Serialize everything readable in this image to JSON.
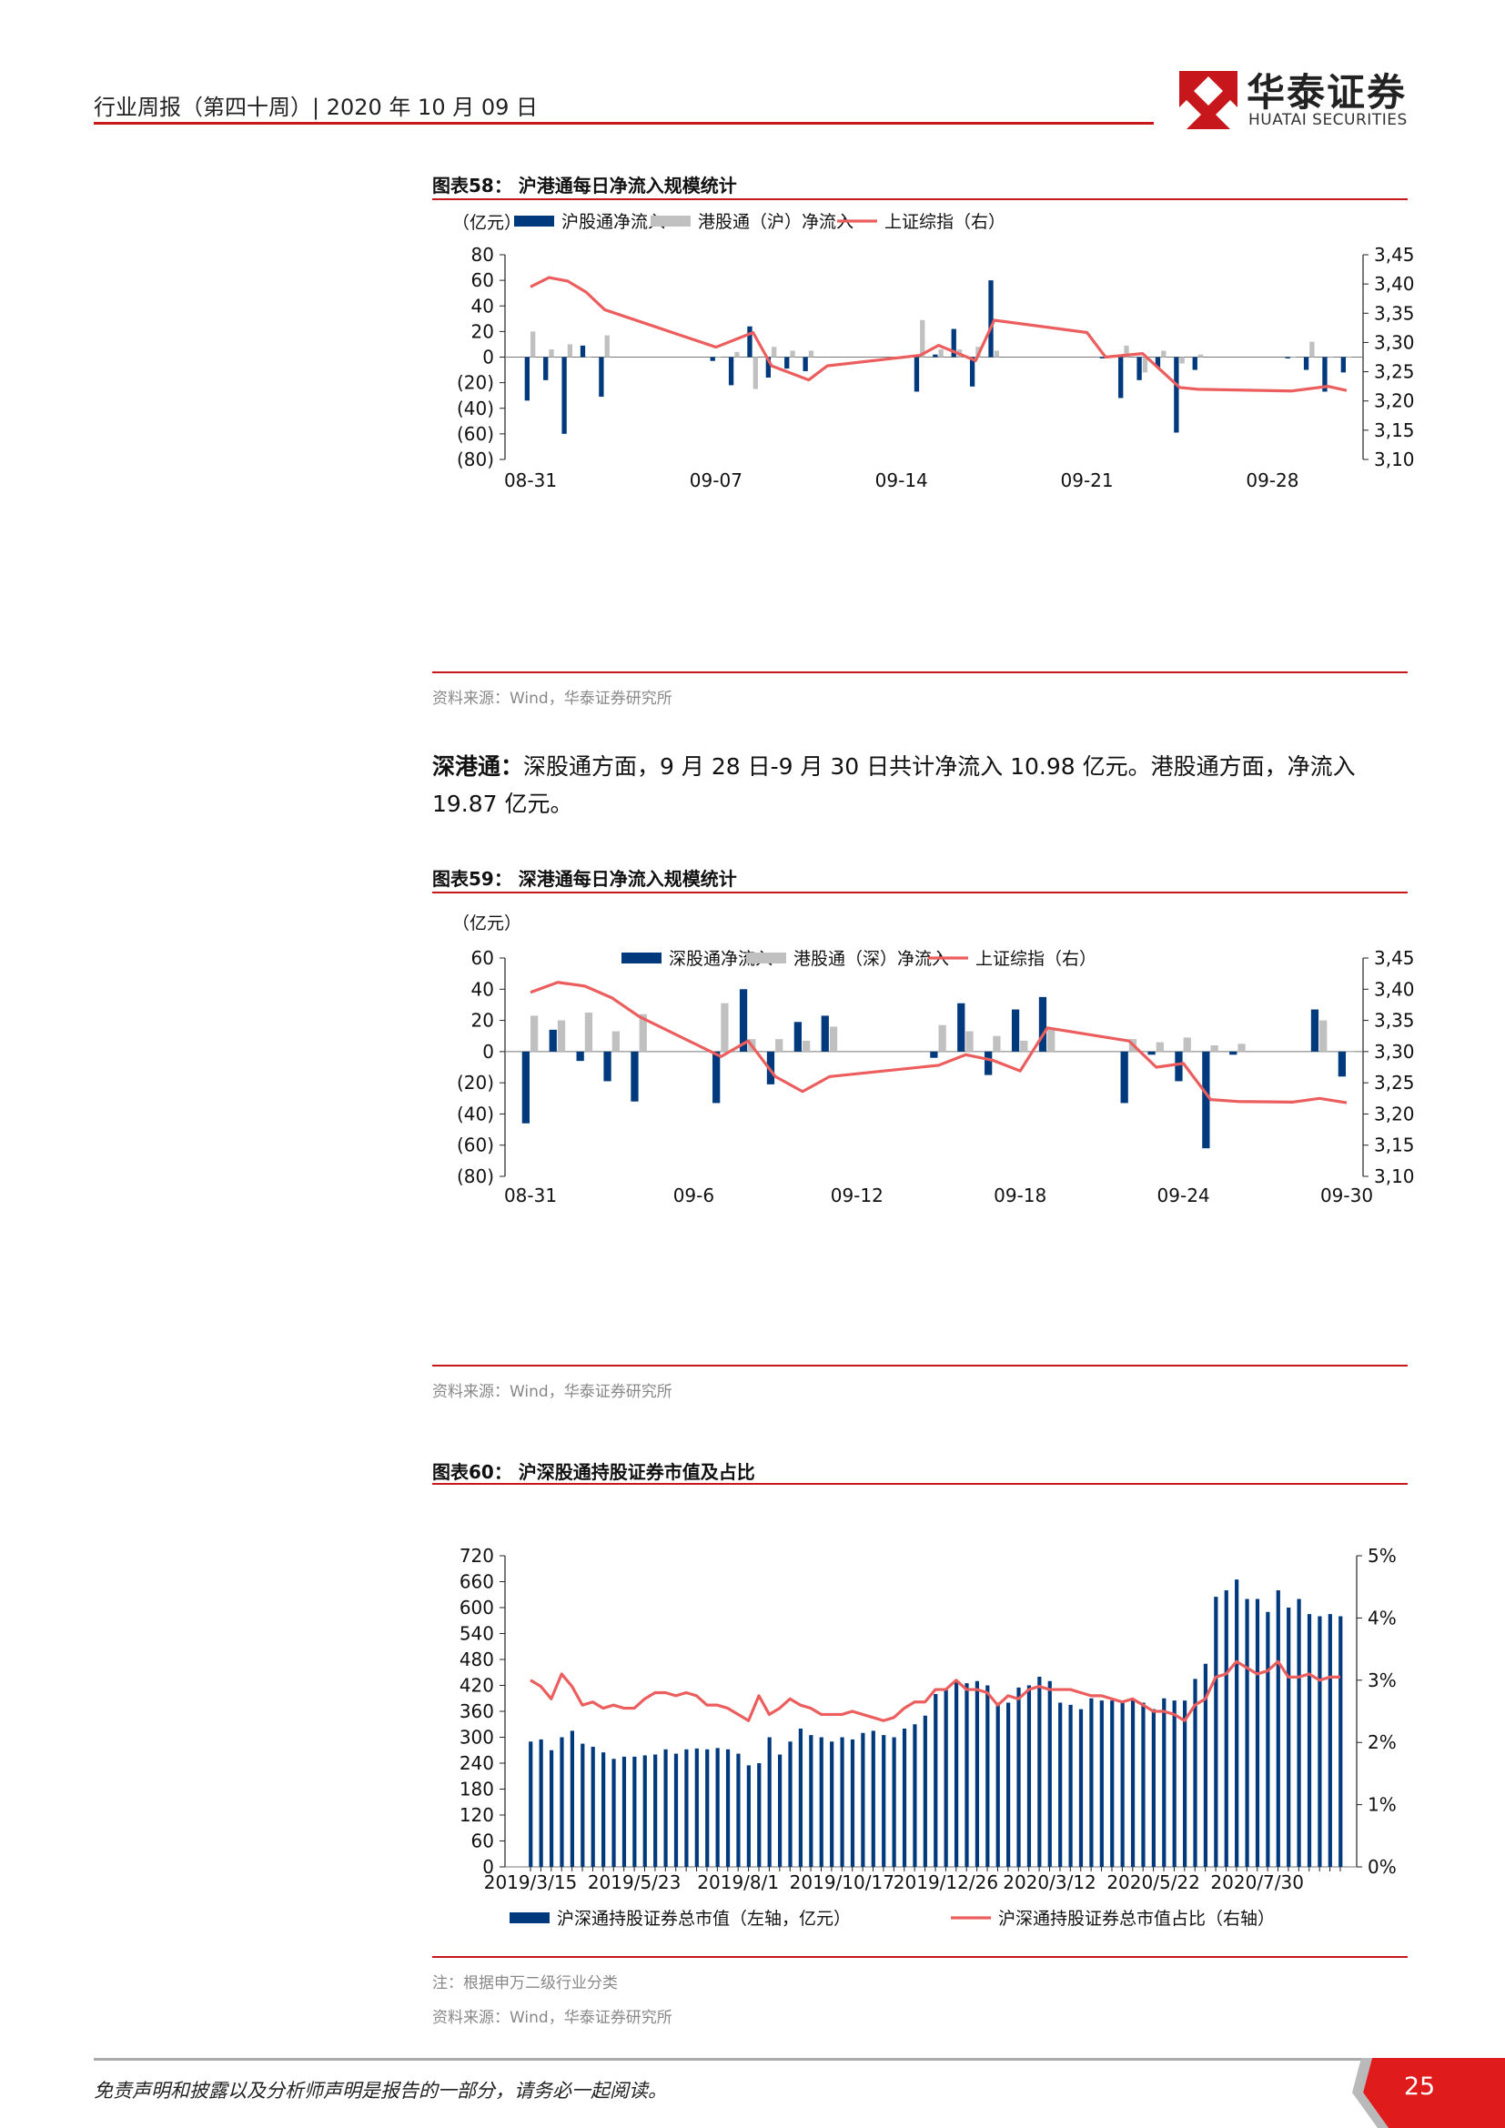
{
  "header": {
    "text": "行业周报（第四十周）| 2020 年 10 月 09 日",
    "logo_cn": "华泰证券",
    "logo_en": "HUATAI SECURITIES"
  },
  "charts_meta": {
    "fig58": {
      "title": "图表58：  沪港通每日净流入规模统计",
      "source": "资料来源：Wind，华泰证券研究所"
    },
    "fig59": {
      "title": "图表59：  深港通每日净流入规模统计",
      "source": "资料来源：Wind，华泰证券研究所"
    },
    "fig60": {
      "title": "图表60：  沪深股通持股证券市值及占比",
      "note": "注：根据申万二级行业分类",
      "source": "资料来源：Wind，华泰证券研究所"
    }
  },
  "paragraph": {
    "lead": "深港通：",
    "body": "深股通方面，9 月 28 日-9 月 30 日共计净流入 10.98 亿元。港股通方面，净流入 19.87 亿元。"
  },
  "colors": {
    "navy": "#003a7d",
    "gray": "#c0c0c0",
    "red": "#ec5e5e",
    "brand_red": "#c8161d"
  },
  "chart_data": [
    {
      "type": "bar",
      "unit_label": "（亿元）",
      "legend": [
        "沪股通净流入",
        "港股通（沪）净流入",
        "上证综指（右）"
      ],
      "legend_placement": "top",
      "x_tick_labels": [
        "08-31",
        "09-07",
        "09-14",
        "09-21",
        "09-28"
      ],
      "x_tick_index": [
        0,
        10,
        20,
        30,
        40
      ],
      "ylim": [
        -80,
        80
      ],
      "y_tick_labels": [
        "80",
        "60",
        "40",
        "20",
        "0",
        "(20)",
        "(40)",
        "(60)",
        "(80)"
      ],
      "y2lim": [
        3100,
        3450
      ],
      "y2_tick_labels": [
        "3,450",
        "3,400",
        "3,350",
        "3,300",
        "3,250",
        "3,200",
        "3,150",
        "3,100"
      ],
      "series": [
        {
          "name": "沪股通净流入",
          "kind": "bar",
          "color": "#003a7d",
          "values": [
            -34,
            -18,
            -60,
            9,
            -31,
            null,
            null,
            null,
            null,
            null,
            -3,
            -22,
            24,
            -16,
            -9,
            -11,
            null,
            null,
            null,
            null,
            null,
            -27,
            2,
            22,
            -23,
            60,
            null,
            null,
            null,
            null,
            null,
            -1,
            -32,
            -18,
            -8,
            -59,
            -10,
            null,
            null,
            null,
            null,
            -1,
            -10,
            -27,
            -12
          ]
        },
        {
          "name": "港股通（沪）净流入",
          "kind": "bar",
          "color": "#c0c0c0",
          "values": [
            20,
            6,
            10,
            0,
            17,
            null,
            null,
            null,
            null,
            null,
            0,
            4,
            -25,
            8,
            5,
            5,
            null,
            null,
            null,
            null,
            null,
            29,
            6,
            6,
            8,
            5,
            null,
            null,
            null,
            null,
            null,
            0,
            9,
            -12,
            5,
            -5,
            2,
            null,
            null,
            null,
            null,
            0,
            12,
            0,
            0
          ]
        },
        {
          "name": "上证综指（右）",
          "kind": "line",
          "color": "#ec5e5e",
          "points": [
            [
              0,
              3395
            ],
            [
              1,
              3411
            ],
            [
              2,
              3405
            ],
            [
              3,
              3386
            ],
            [
              4,
              3356
            ],
            [
              10,
              3292
            ],
            [
              12,
              3317
            ],
            [
              13,
              3260
            ],
            [
              15,
              3236
            ],
            [
              16,
              3260
            ],
            [
              21,
              3278
            ],
            [
              22,
              3295
            ],
            [
              24,
              3269
            ],
            [
              25,
              3338
            ],
            [
              30,
              3317
            ],
            [
              31,
              3275
            ],
            [
              33,
              3281
            ],
            [
              35,
              3223
            ],
            [
              36,
              3220
            ],
            [
              41,
              3217
            ],
            [
              43,
              3225
            ],
            [
              44,
              3218
            ]
          ]
        }
      ]
    },
    {
      "type": "bar",
      "unit_label": "（亿元）",
      "legend": [
        "深股通净流入",
        "港股通（深）净流入",
        "上证综指（右）"
      ],
      "legend_placement": "top",
      "x_tick_labels": [
        "08-31",
        "09-6",
        "09-12",
        "09-18",
        "09-24",
        "09-30"
      ],
      "x_tick_index": [
        0,
        6,
        12,
        18,
        24,
        30
      ],
      "ylim": [
        -80,
        60
      ],
      "y_tick_labels": [
        "60",
        "40",
        "20",
        "0",
        "(20)",
        "(40)",
        "(60)",
        "(80)"
      ],
      "y2lim": [
        3100,
        3450
      ],
      "y2_tick_labels": [
        "3,450",
        "3,400",
        "3,350",
        "3,300",
        "3,250",
        "3,200",
        "3,150",
        "3,100"
      ],
      "series": [
        {
          "name": "深股通净流入",
          "kind": "bar",
          "color": "#003a7d",
          "values": [
            -46,
            14,
            -6,
            -19,
            -32,
            null,
            null,
            -33,
            40,
            -21,
            19,
            23,
            null,
            null,
            null,
            -4,
            31,
            -15,
            27,
            35,
            null,
            null,
            -33,
            -2,
            -19,
            -62,
            -2,
            null,
            null,
            27,
            -16
          ]
        },
        {
          "name": "港股通（深）净流入",
          "kind": "bar",
          "color": "#c0c0c0",
          "values": [
            23,
            20,
            25,
            13,
            24,
            null,
            null,
            31,
            8,
            8,
            7,
            16,
            null,
            null,
            null,
            17,
            13,
            10,
            7,
            14,
            null,
            null,
            8,
            6,
            9,
            4,
            5,
            null,
            null,
            20,
            0
          ]
        },
        {
          "name": "上证综指（右）",
          "kind": "line",
          "color": "#ec5e5e",
          "points": [
            [
              0,
              3395
            ],
            [
              1,
              3411
            ],
            [
              2,
              3405
            ],
            [
              3,
              3386
            ],
            [
              4,
              3356
            ],
            [
              7,
              3292
            ],
            [
              8,
              3317
            ],
            [
              9,
              3260
            ],
            [
              10,
              3236
            ],
            [
              11,
              3260
            ],
            [
              15,
              3278
            ],
            [
              16,
              3295
            ],
            [
              17,
              3286
            ],
            [
              18,
              3269
            ],
            [
              19,
              3338
            ],
            [
              22,
              3317
            ],
            [
              23,
              3275
            ],
            [
              24,
              3281
            ],
            [
              25,
              3223
            ],
            [
              26,
              3220
            ],
            [
              28,
              3219
            ],
            [
              29,
              3225
            ],
            [
              30,
              3218
            ]
          ]
        }
      ]
    },
    {
      "type": "bar",
      "legend": [
        "沪深通持股证券总市值（左轴，亿元）",
        "沪深通持股证券总市值占比（右轴）"
      ],
      "legend_placement": "bottom",
      "x_tick_labels": [
        "2019/3/15",
        "2019/5/23",
        "2019/8/1",
        "2019/10/17",
        "2019/12/26",
        "2020/3/12",
        "2020/5/22",
        "2020/7/30"
      ],
      "x_tick_index": [
        0,
        10,
        20,
        30,
        40,
        50,
        60,
        70
      ],
      "ylim": [
        0,
        720
      ],
      "y_tick_labels": [
        "720",
        "660",
        "600",
        "540",
        "480",
        "420",
        "360",
        "300",
        "240",
        "180",
        "120",
        "60",
        "0"
      ],
      "y2lim": [
        0,
        5
      ],
      "y2_tick_labels": [
        "5%",
        "4%",
        "3%",
        "2%",
        "1%",
        "0%"
      ],
      "series": [
        {
          "name": "沪深通持股证券总市值（左轴，亿元）",
          "kind": "bar",
          "color": "#003a7d",
          "values": [
            290,
            295,
            270,
            300,
            315,
            285,
            278,
            265,
            250,
            255,
            255,
            258,
            260,
            272,
            262,
            272,
            274,
            272,
            275,
            272,
            262,
            235,
            240,
            300,
            260,
            290,
            320,
            305,
            300,
            290,
            300,
            295,
            310,
            315,
            305,
            300,
            320,
            330,
            350,
            400,
            410,
            430,
            425,
            430,
            420,
            380,
            380,
            415,
            420,
            440,
            430,
            380,
            375,
            365,
            390,
            385,
            385,
            385,
            390,
            380,
            365,
            390,
            385,
            385,
            435,
            470,
            625,
            640,
            665,
            620,
            620,
            590,
            640,
            600,
            620,
            585,
            580,
            585,
            580
          ]
        },
        {
          "name": "沪深通持股证券总市值占比（右轴）",
          "kind": "line",
          "color": "#ec5e5e",
          "values": [
            3.0,
            2.9,
            2.7,
            3.1,
            2.9,
            2.6,
            2.65,
            2.55,
            2.6,
            2.55,
            2.55,
            2.7,
            2.8,
            2.8,
            2.75,
            2.8,
            2.75,
            2.6,
            2.6,
            2.55,
            2.45,
            2.35,
            2.75,
            2.45,
            2.55,
            2.7,
            2.6,
            2.55,
            2.45,
            2.45,
            2.45,
            2.5,
            2.45,
            2.4,
            2.35,
            2.4,
            2.55,
            2.65,
            2.65,
            2.85,
            2.85,
            3.0,
            2.85,
            2.85,
            2.8,
            2.6,
            2.75,
            2.7,
            2.85,
            2.9,
            2.85,
            2.85,
            2.85,
            2.8,
            2.75,
            2.75,
            2.7,
            2.65,
            2.7,
            2.6,
            2.5,
            2.5,
            2.45,
            2.35,
            2.6,
            2.7,
            3.05,
            3.1,
            3.3,
            3.2,
            3.1,
            3.15,
            3.3,
            3.05,
            3.05,
            3.1,
            3.0,
            3.05,
            3.05
          ]
        }
      ]
    }
  ],
  "footer": {
    "disclaimer": "免责声明和披露以及分析师声明是报告的一部分，请务必一起阅读。",
    "page_number": "25"
  }
}
